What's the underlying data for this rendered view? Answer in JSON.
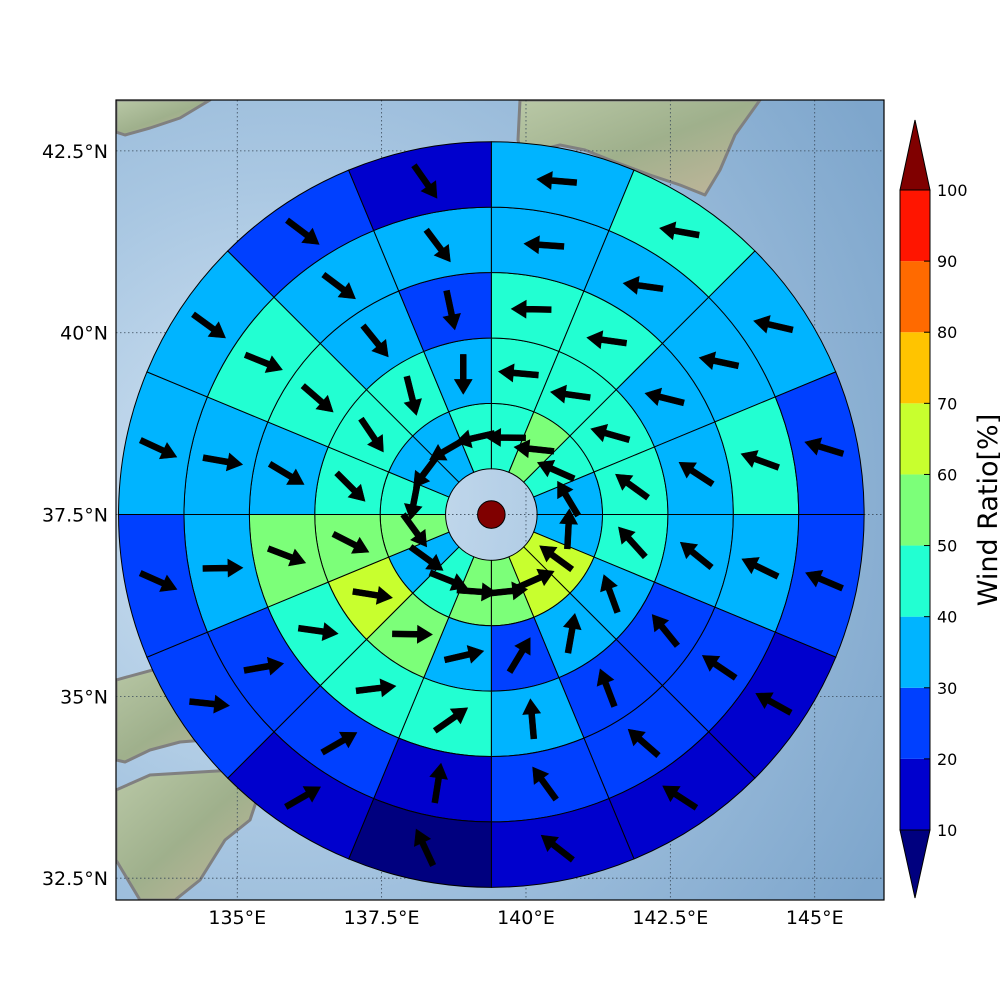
{
  "chart_data": {
    "type": "polar-sector-map",
    "map": {
      "lon_range": [
        132.9,
        146.2
      ],
      "lat_range": [
        32.2,
        43.2
      ],
      "grid": true,
      "lon_ticks": [
        {
          "value": 135,
          "label": "135°E"
        },
        {
          "value": 137.5,
          "label": "137.5°E"
        },
        {
          "value": 140,
          "label": "140°E"
        },
        {
          "value": 142.5,
          "label": "142.5°E"
        },
        {
          "value": 145,
          "label": "145°E"
        }
      ],
      "lat_ticks": [
        {
          "value": 32.5,
          "label": "32.5°N"
        },
        {
          "value": 35,
          "label": "35°N"
        },
        {
          "value": 37.5,
          "label": "37.5°N"
        },
        {
          "value": 40,
          "label": "40°N"
        },
        {
          "value": 42.5,
          "label": "42.5°N"
        }
      ]
    },
    "center": {
      "lon": 139.4,
      "lat": 37.5,
      "value": 100
    },
    "sector_deg": 22.5,
    "rings": [
      {
        "inner_km": 70,
        "outer_km": 170,
        "values": [
          45,
          55,
          45,
          35,
          35,
          65,
          65,
          55,
          55,
          45,
          35,
          55,
          45,
          35,
          35,
          45
        ],
        "wind_deg": [
          -89,
          -84,
          -66,
          -31,
          3,
          -54,
          66,
          84,
          94,
          112,
          126,
          144,
          191,
          217,
          240,
          257
        ]
      },
      {
        "inner_km": 170,
        "outer_km": 270,
        "values": [
          45,
          45,
          45,
          45,
          45,
          35,
          35,
          25,
          35,
          55,
          65,
          55,
          45,
          45,
          45,
          35
        ],
        "wind_deg": [
          -85,
          -82,
          -74,
          -54,
          -42,
          -20,
          10,
          31,
          77,
          91,
          99,
          117,
          135,
          146,
          166,
          180
        ]
      },
      {
        "inner_km": 270,
        "outer_km": 370,
        "values": [
          45,
          45,
          35,
          35,
          35,
          25,
          25,
          35,
          45,
          45,
          45,
          55,
          35,
          45,
          35,
          25
        ],
        "wind_deg": [
          -89,
          -82,
          -76,
          -57,
          -51,
          -39,
          -21,
          -5,
          55,
          83,
          98,
          111,
          121,
          131,
          141,
          168
        ]
      },
      {
        "inner_km": 370,
        "outer_km": 470,
        "values": [
          35,
          35,
          35,
          45,
          35,
          25,
          25,
          25,
          15,
          25,
          25,
          35,
          35,
          45,
          35,
          35
        ],
        "wind_deg": [
          -86,
          -82,
          -78,
          -70,
          -64,
          -56,
          -49,
          -36,
          9,
          60,
          80,
          89,
          100,
          112,
          127,
          143
        ]
      },
      {
        "inner_km": 470,
        "outer_km": 570,
        "values": [
          35,
          45,
          35,
          25,
          25,
          15,
          15,
          15,
          5,
          15,
          25,
          25,
          35,
          35,
          25,
          15
        ],
        "wind_deg": [
          -85,
          -80,
          -77,
          -73,
          -67,
          -61,
          -57,
          -52,
          -25,
          60,
          96,
          114,
          115,
          126,
          127,
          145
        ]
      }
    ],
    "colorbar": {
      "label": "Wind Ratio[%]",
      "ticks": [
        10,
        20,
        30,
        40,
        50,
        60,
        70,
        80,
        90,
        100
      ],
      "bins": [
        {
          "from": 10,
          "to": 20,
          "color": "#0000cd"
        },
        {
          "from": 20,
          "to": 30,
          "color": "#0040ff"
        },
        {
          "from": 30,
          "to": 40,
          "color": "#00b4ff"
        },
        {
          "from": 40,
          "to": 50,
          "color": "#22ffd2"
        },
        {
          "from": 50,
          "to": 60,
          "color": "#7cff79"
        },
        {
          "from": 60,
          "to": 70,
          "color": "#c8ff2e"
        },
        {
          "from": 70,
          "to": 80,
          "color": "#ffc400"
        },
        {
          "from": 80,
          "to": 90,
          "color": "#ff6a00"
        },
        {
          "from": 90,
          "to": 100,
          "color": "#ff1500"
        }
      ],
      "under_color": "#00007f",
      "over_color": "#800000"
    }
  }
}
